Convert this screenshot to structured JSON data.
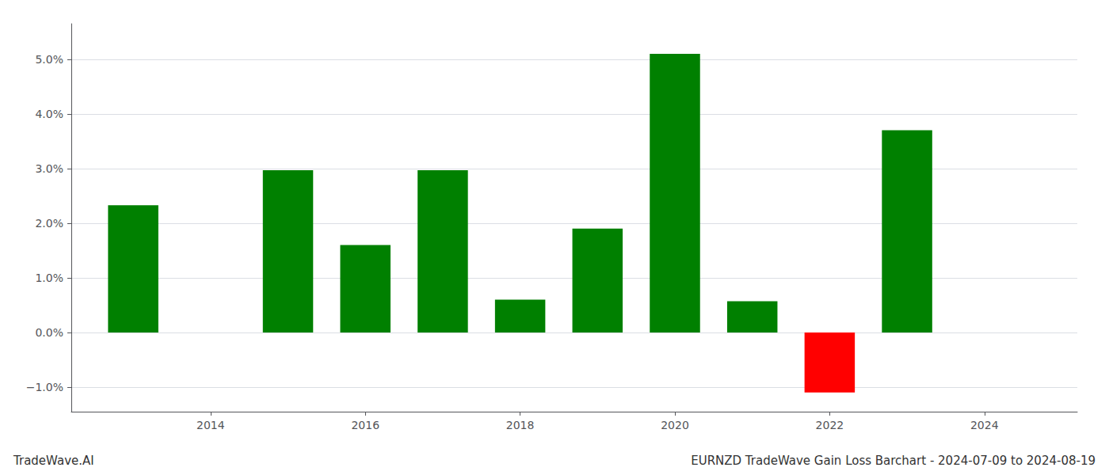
{
  "chart_data": {
    "type": "bar",
    "title": "EURNZD TradeWave Gain Loss Barchart - 2024-07-09 to 2024-08-19",
    "annotations": [
      "TradeWave.AI"
    ],
    "x": [
      2013,
      2015,
      2016,
      2017,
      2018,
      2019,
      2020,
      2021,
      2022,
      2023
    ],
    "values": [
      2.33,
      2.97,
      1.6,
      2.97,
      0.6,
      1.9,
      5.1,
      0.57,
      -1.1,
      3.7
    ],
    "colors": [
      "#008000",
      "#008000",
      "#008000",
      "#008000",
      "#008000",
      "#008000",
      "#008000",
      "#008000",
      "#ff0000",
      "#008000"
    ],
    "xlim": [
      2012.2,
      2025.2
    ],
    "xticks": [
      2014,
      2016,
      2018,
      2020,
      2022,
      2024
    ],
    "ylim": [
      -1.45,
      5.65
    ],
    "yticks": [
      {
        "value": -1.0,
        "label": "−1.0%"
      },
      {
        "value": 0.0,
        "label": "0.0%"
      },
      {
        "value": 1.0,
        "label": "1.0%"
      },
      {
        "value": 2.0,
        "label": "2.0%"
      },
      {
        "value": 3.0,
        "label": "3.0%"
      },
      {
        "value": 4.0,
        "label": "4.0%"
      },
      {
        "value": 5.0,
        "label": "5.0%"
      }
    ],
    "grid": true
  }
}
